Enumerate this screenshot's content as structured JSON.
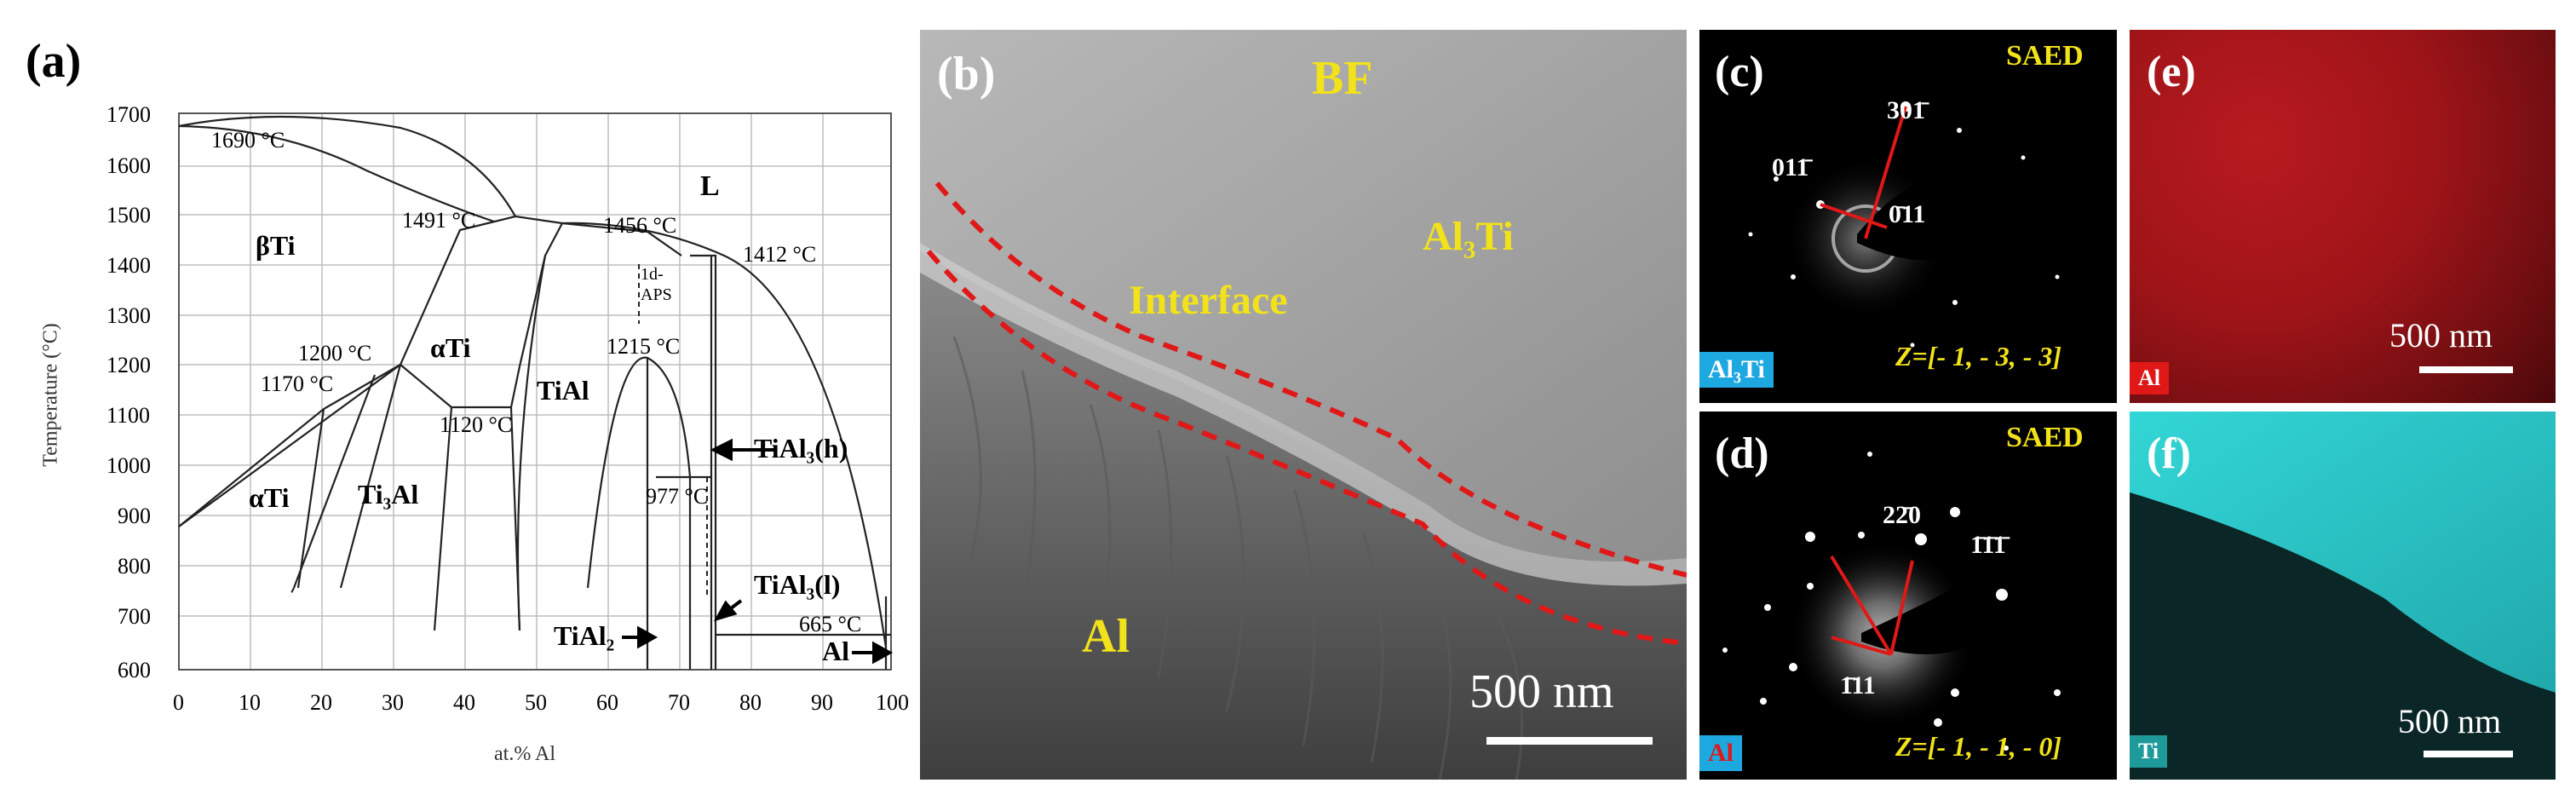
{
  "panels": {
    "a": {
      "label": "(a)",
      "ylabel": "Temperature (°C)",
      "xlabel": "at.% Al",
      "y_ticks": [
        "1700",
        "1600",
        "1500",
        "1400",
        "1300",
        "1200",
        "1100",
        "1000",
        "900",
        "800",
        "700",
        "600"
      ],
      "x_ticks": [
        "0",
        "10",
        "20",
        "30",
        "40",
        "50",
        "60",
        "70",
        "80",
        "90",
        "100"
      ],
      "annotations": {
        "t1690": "1690 °C",
        "L": "L",
        "t1491": "1491 °C",
        "t1456": "1456 °C",
        "t1412": "1412 °C",
        "betaTi": "βTi",
        "aps": "1d-APS",
        "t1200": "1200 °C",
        "alphaTi1": "αTi",
        "t1215": "1215 °C",
        "t1170": "1170 °C",
        "TiAl": "TiAl",
        "t1120": "1120 °C",
        "TiAl3h": "TiAl₃(h)",
        "alphaTi2": "αTi",
        "Ti3Al": "Ti₃Al",
        "t977": "977 °C",
        "TiAl3l": "TiAl₃(l)",
        "t665": "665 °C",
        "TiAl2": "TiAl₂",
        "Al": "Al"
      }
    },
    "b": {
      "label": "(b)",
      "mode": "BF",
      "phase_top": "Al₃Ti",
      "interface": "Interface",
      "phase_bottom": "Al",
      "scale": "500 nm"
    },
    "c": {
      "label": "(c)",
      "mode": "SAED",
      "spots": [
        "301̄",
        "011̄",
        "0̄11"
      ],
      "zone": "Z=[- 1, - 3, - 3]",
      "phase": "Al₃Ti"
    },
    "d": {
      "label": "(d)",
      "mode": "SAED",
      "spots": [
        "22̄0",
        "1̄1̄1̄",
        "1̄11"
      ],
      "zone": "Z=[- 1, - 1, - 0]",
      "phase": "Al"
    },
    "e": {
      "label": "(e)",
      "scale": "500 nm",
      "element": "Al",
      "color": "#c8141e"
    },
    "f": {
      "label": "(f)",
      "scale": "500 nm",
      "element": "Ti",
      "color": "#2fd0d0"
    }
  }
}
